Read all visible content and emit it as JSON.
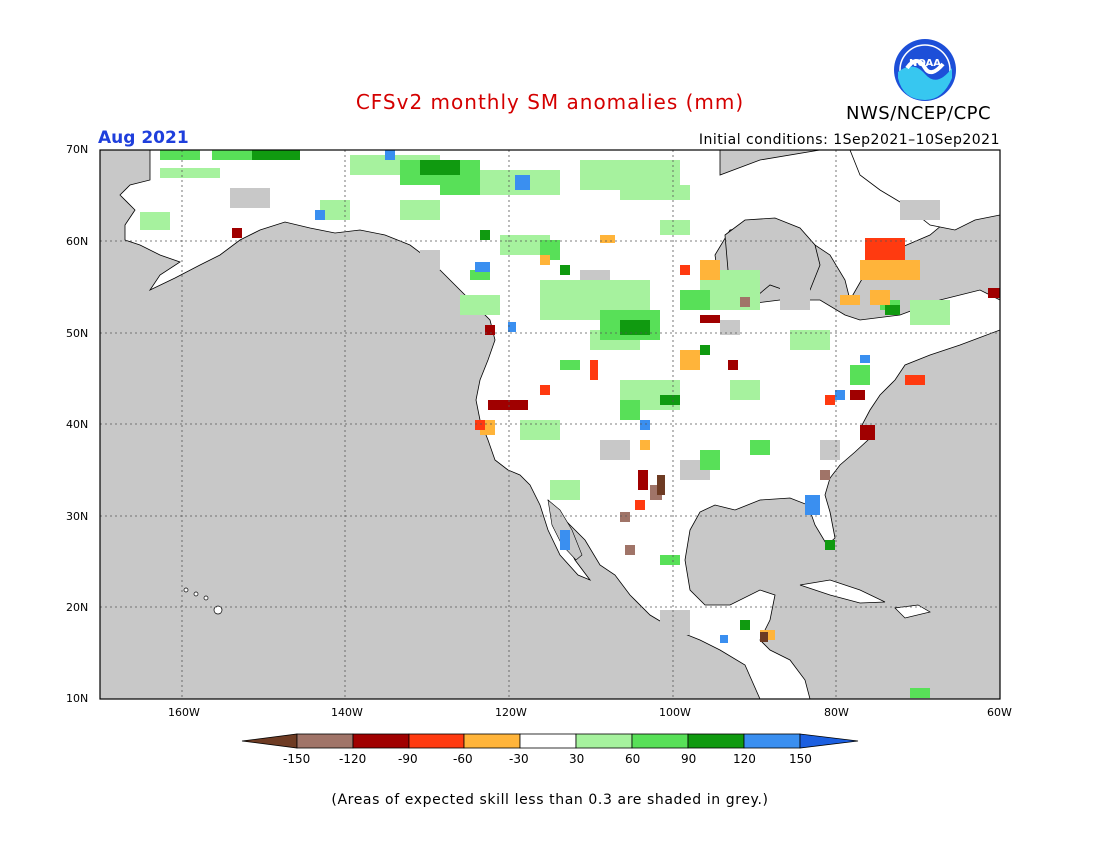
{
  "header": {
    "title": "CFSv2 monthly SM anomalies (mm)",
    "month": "Aug 2021",
    "initial_conditions": "Initial conditions: 1Sep2021–10Sep2021",
    "agency": "NWS/NCEP/CPC",
    "logo_text": "NOAA",
    "logo_icon": "noaa-logo-icon"
  },
  "map": {
    "lat_labels": [
      "70N",
      "60N",
      "50N",
      "40N",
      "30N",
      "20N",
      "10N"
    ],
    "lon_labels": [
      "160W",
      "140W",
      "120W",
      "100W",
      "80W",
      "60W"
    ],
    "lat_range": [
      10,
      70
    ],
    "lon_range": [
      -170,
      -60
    ],
    "ocean_color": "#c8c8c8",
    "land_color": "#ffffff",
    "grid": "dotted"
  },
  "colorbar": {
    "tick_labels": [
      "-150",
      "-120",
      "-90",
      "-60",
      "-30",
      "30",
      "60",
      "90",
      "120",
      "150"
    ],
    "colors": [
      "#6e3b23",
      "#a07468",
      "#a00000",
      "#ff3a10",
      "#ffb43a",
      "#ffffff",
      "#a6f29e",
      "#58e058",
      "#109a10",
      "#3a8ff0",
      "#1c5fe0"
    ]
  },
  "footnote": "(Areas of expected skill less than 0.3 are shaded in grey.)"
}
